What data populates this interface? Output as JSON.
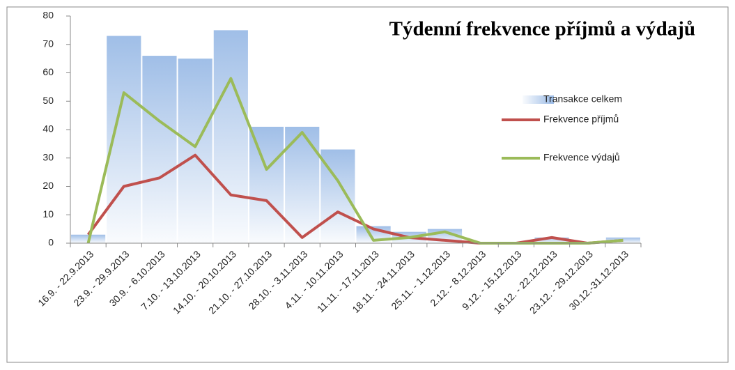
{
  "chart_data": {
    "type": "bar_line",
    "title": "Týdenní frekvence příjmů a výdajů",
    "categories": [
      "16.9. - 22.9.2013",
      "23.9. - 29.9.2013",
      "30.9. - 6.10.2013",
      "7.10. - 13.10.2013",
      "14.10. - 20.10.2013",
      "21.10. - 27.10.2013",
      "28.10. - 3.11.2013",
      "4.11. - 10.11.2013",
      "11.11. - 17.11.2013",
      "18.11. - 24.11.2013",
      "25.11. - 1.12.2013",
      "2.12. - 8.12.2013",
      "9.12. - 15.12.2013",
      "16.12. - 22.12.2013",
      "23.12. - 29.12.2013",
      "30.12.-31.12.2013"
    ],
    "series": [
      {
        "name": "Transakce celkem",
        "type": "bar",
        "color": "#8fb3e3",
        "values": [
          3,
          73,
          66,
          65,
          75,
          41,
          41,
          33,
          6,
          4,
          5,
          0,
          0,
          2,
          0,
          2
        ]
      },
      {
        "name": "Frekvence příjmů",
        "type": "line",
        "color": "#c0504d",
        "values": [
          3,
          20,
          23,
          31,
          17,
          15,
          2,
          11,
          5,
          2,
          1,
          0,
          0,
          2,
          0,
          1
        ]
      },
      {
        "name": "Frekvence výdajů",
        "type": "line",
        "color": "#9bbb59",
        "values": [
          0,
          53,
          43,
          34,
          58,
          26,
          39,
          22,
          1,
          2,
          4,
          0,
          0,
          0,
          0,
          1
        ]
      }
    ],
    "ylim": [
      0,
      80
    ],
    "yticks": [
      0,
      10,
      20,
      30,
      40,
      50,
      60,
      70,
      80
    ],
    "legend": "right"
  }
}
